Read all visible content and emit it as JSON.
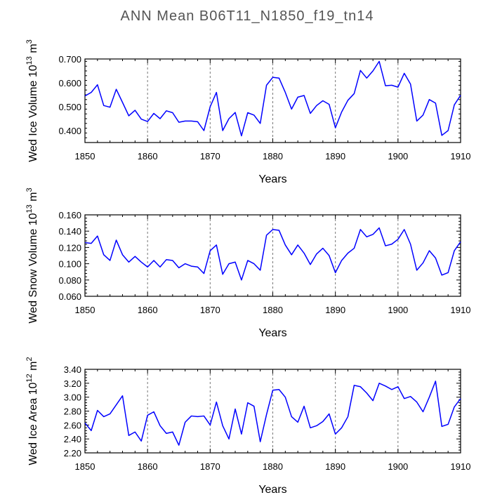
{
  "figure": {
    "title": "ANN Mean B06T11_N1850_f19_tn14",
    "line_color": "#0000ff",
    "grid_color": "#777777"
  },
  "chart_data": [
    {
      "type": "line",
      "xlabel": "Years",
      "ylabel": "Wed Ice Volume 10",
      "ylabel_sup": "13",
      "ylabel_unit": " m",
      "ylabel_unit_sup": "3",
      "xlim": [
        1850,
        1910
      ],
      "ylim": [
        0.35,
        0.7
      ],
      "xticks": [
        1850,
        1860,
        1870,
        1880,
        1890,
        1900,
        1910
      ],
      "yticks": [
        "0.400",
        "0.500",
        "0.600",
        "0.700"
      ],
      "ytick_values": [
        0.4,
        0.5,
        0.6,
        0.7
      ],
      "vgrid": [
        1860,
        1870,
        1880,
        1890,
        1900
      ],
      "x": [
        1850,
        1851,
        1852,
        1853,
        1854,
        1855,
        1856,
        1857,
        1858,
        1859,
        1860,
        1861,
        1862,
        1863,
        1864,
        1865,
        1866,
        1867,
        1868,
        1869,
        1870,
        1871,
        1872,
        1873,
        1874,
        1875,
        1876,
        1877,
        1878,
        1879,
        1880,
        1881,
        1882,
        1883,
        1884,
        1885,
        1886,
        1887,
        1888,
        1889,
        1890,
        1891,
        1892,
        1893,
        1894,
        1895,
        1896,
        1897,
        1898,
        1899,
        1900,
        1901,
        1902,
        1903,
        1904,
        1905,
        1906,
        1907,
        1908,
        1909,
        1910
      ],
      "values": [
        0.545,
        0.56,
        0.592,
        0.505,
        0.498,
        0.573,
        0.518,
        0.462,
        0.485,
        0.448,
        0.438,
        0.472,
        0.45,
        0.483,
        0.475,
        0.435,
        0.44,
        0.44,
        0.437,
        0.4,
        0.5,
        0.56,
        0.4,
        0.45,
        0.476,
        0.378,
        0.475,
        0.465,
        0.43,
        0.59,
        0.623,
        0.62,
        0.56,
        0.49,
        0.54,
        0.547,
        0.472,
        0.505,
        0.525,
        0.51,
        0.412,
        0.478,
        0.527,
        0.555,
        0.652,
        0.62,
        0.65,
        0.69,
        0.588,
        0.59,
        0.582,
        0.64,
        0.595,
        0.44,
        0.465,
        0.53,
        0.515,
        0.38,
        0.4,
        0.508,
        0.548
      ]
    },
    {
      "type": "line",
      "xlabel": "Years",
      "ylabel": "Wed Snow Volume 10",
      "ylabel_sup": "13",
      "ylabel_unit": " m",
      "ylabel_unit_sup": "3",
      "xlim": [
        1850,
        1910
      ],
      "ylim": [
        0.06,
        0.16
      ],
      "xticks": [
        1850,
        1860,
        1870,
        1880,
        1890,
        1900,
        1910
      ],
      "yticks": [
        "0.060",
        "0.080",
        "0.100",
        "0.120",
        "0.140",
        "0.160"
      ],
      "ytick_values": [
        0.06,
        0.08,
        0.1,
        0.12,
        0.14,
        0.16
      ],
      "vgrid": [
        1860,
        1870,
        1880,
        1890,
        1900
      ],
      "x": [
        1850,
        1851,
        1852,
        1853,
        1854,
        1855,
        1856,
        1857,
        1858,
        1859,
        1860,
        1861,
        1862,
        1863,
        1864,
        1865,
        1866,
        1867,
        1868,
        1869,
        1870,
        1871,
        1872,
        1873,
        1874,
        1875,
        1876,
        1877,
        1878,
        1879,
        1880,
        1881,
        1882,
        1883,
        1884,
        1885,
        1886,
        1887,
        1888,
        1889,
        1890,
        1891,
        1892,
        1893,
        1894,
        1895,
        1896,
        1897,
        1898,
        1899,
        1900,
        1901,
        1902,
        1903,
        1904,
        1905,
        1906,
        1907,
        1908,
        1909,
        1910
      ],
      "values": [
        0.126,
        0.125,
        0.134,
        0.111,
        0.104,
        0.129,
        0.111,
        0.102,
        0.109,
        0.102,
        0.096,
        0.104,
        0.096,
        0.105,
        0.104,
        0.095,
        0.1,
        0.097,
        0.096,
        0.088,
        0.116,
        0.123,
        0.087,
        0.1,
        0.102,
        0.08,
        0.104,
        0.1,
        0.092,
        0.135,
        0.142,
        0.141,
        0.123,
        0.111,
        0.123,
        0.113,
        0.099,
        0.112,
        0.119,
        0.11,
        0.089,
        0.104,
        0.113,
        0.119,
        0.142,
        0.133,
        0.136,
        0.144,
        0.122,
        0.124,
        0.13,
        0.142,
        0.124,
        0.092,
        0.101,
        0.116,
        0.107,
        0.086,
        0.089,
        0.116,
        0.127
      ]
    },
    {
      "type": "line",
      "xlabel": "Years",
      "ylabel": "Wed Ice Area 10",
      "ylabel_sup": "12",
      "ylabel_unit": " m",
      "ylabel_unit_sup": "2",
      "xlim": [
        1850,
        1910
      ],
      "ylim": [
        2.2,
        3.4
      ],
      "xticks": [
        1850,
        1860,
        1870,
        1880,
        1890,
        1900,
        1910
      ],
      "yticks": [
        "2.20",
        "2.40",
        "2.60",
        "2.80",
        "3.00",
        "3.20",
        "3.40"
      ],
      "ytick_values": [
        2.2,
        2.4,
        2.6,
        2.8,
        3.0,
        3.2,
        3.4
      ],
      "vgrid": [
        1860,
        1870,
        1880,
        1890,
        1900
      ],
      "x": [
        1850,
        1851,
        1852,
        1853,
        1854,
        1855,
        1856,
        1857,
        1858,
        1859,
        1860,
        1861,
        1862,
        1863,
        1864,
        1865,
        1866,
        1867,
        1868,
        1869,
        1870,
        1871,
        1872,
        1873,
        1874,
        1875,
        1876,
        1877,
        1878,
        1879,
        1880,
        1881,
        1882,
        1883,
        1884,
        1885,
        1886,
        1887,
        1888,
        1889,
        1890,
        1891,
        1892,
        1893,
        1894,
        1895,
        1896,
        1897,
        1898,
        1899,
        1900,
        1901,
        1902,
        1903,
        1904,
        1905,
        1906,
        1907,
        1908,
        1909,
        1910
      ],
      "values": [
        2.63,
        2.52,
        2.81,
        2.72,
        2.76,
        2.89,
        3.02,
        2.45,
        2.5,
        2.37,
        2.74,
        2.79,
        2.59,
        2.48,
        2.5,
        2.31,
        2.64,
        2.73,
        2.72,
        2.73,
        2.6,
        2.93,
        2.59,
        2.4,
        2.83,
        2.47,
        2.92,
        2.87,
        2.36,
        2.75,
        3.1,
        3.11,
        3.0,
        2.72,
        2.64,
        2.87,
        2.56,
        2.59,
        2.65,
        2.76,
        2.47,
        2.56,
        2.72,
        3.17,
        3.15,
        3.06,
        2.95,
        3.2,
        3.16,
        3.11,
        3.15,
        2.98,
        3.01,
        2.93,
        2.79,
        3.0,
        3.23,
        2.58,
        2.61,
        2.86,
        2.98
      ]
    }
  ]
}
